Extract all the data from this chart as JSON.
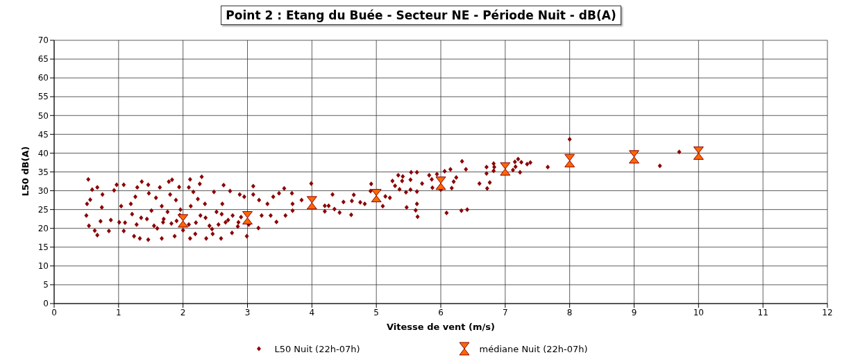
{
  "chart_data": {
    "type": "scatter",
    "title": "Point 2 : Etang du Buée - Secteur NE - Période Nuit - dB(A)",
    "xlabel": "Vitesse de vent (m/s)",
    "ylabel": "L50 dB(A)",
    "xlim": [
      0,
      12
    ],
    "xticks": [
      0,
      1,
      2,
      3,
      4,
      5,
      6,
      7,
      8,
      9,
      10,
      11,
      12
    ],
    "ylim": [
      0,
      70
    ],
    "yticks": [
      0,
      5,
      10,
      15,
      20,
      25,
      30,
      35,
      40,
      45,
      50,
      55,
      60,
      65,
      70
    ],
    "grid": true,
    "legend": "bottom",
    "series": [
      {
        "name": "L50 Nuit (22h-07h)",
        "color": "#8b0000",
        "marker": "diamond",
        "x": [
          0.53,
          0.56,
          0.51,
          0.5,
          0.54,
          0.59,
          0.67,
          0.67,
          0.75,
          0.74,
          0.72,
          0.63,
          0.88,
          0.85,
          0.97,
          1.08,
          0.93,
          1.04,
          1.01,
          1.08,
          1.19,
          1.21,
          1.29,
          1.36,
          1.26,
          1.28,
          1.33,
          1.24,
          1.44,
          1.46,
          1.47,
          1.51,
          1.55,
          1.46,
          1.64,
          1.58,
          1.67,
          1.69,
          1.67,
          1.78,
          1.83,
          1.8,
          1.76,
          1.82,
          1.87,
          1.94,
          1.89,
          1.96,
          2.09,
          2.11,
          2.16,
          2.12,
          2.09,
          2.11,
          2.29,
          2.26,
          2.23,
          2.27,
          2.19,
          2.34,
          2.41,
          2.36,
          2.48,
          2.52,
          2.46,
          2.63,
          2.61,
          2.66,
          2.59,
          2.73,
          2.77,
          2.76,
          2.88,
          2.95,
          2.86,
          3.09,
          3.09,
          3.18,
          3.22,
          2.99,
          3.31,
          3.36,
          3.4,
          3.45,
          3.49,
          3.57,
          3.69,
          3.7,
          3.7,
          3.59,
          3.17,
          3.02,
          1.7,
          1.9,
          2.2,
          2.35,
          2.55,
          2.7,
          2.85,
          1.35,
          1.1,
          1.6,
          2.0,
          2.45,
          2.9,
          1.95,
          2.6,
          3.99,
          4.32,
          3.84,
          4.2,
          4.26,
          4.35,
          4.43,
          4.2,
          4.49,
          4.62,
          4.65,
          4.61,
          4.75,
          4.82,
          4.92,
          4.91,
          5.14,
          5.21,
          5.1,
          5.25,
          5.34,
          5.41,
          5.29,
          5.36,
          5.4,
          5.46,
          5.54,
          5.63,
          5.53,
          5.53,
          5.63,
          5.71,
          5.47,
          5.63,
          5.61,
          5.64,
          5.82,
          5.86,
          5.94,
          6.06,
          6.15,
          6.33,
          6.39,
          6.24,
          6.2,
          5.87,
          6.17,
          6.0,
          6.09,
          6.32,
          6.41,
          6.6,
          6.72,
          6.76,
          6.71,
          6.82,
          6.82,
          6.83,
          6.71,
          7.12,
          7.16,
          7.15,
          7.2,
          7.25,
          7.23,
          7.34,
          7.39,
          7.66,
          8.0,
          9.4,
          9.7
        ],
        "values": [
          33.0,
          27.6,
          26.5,
          23.4,
          20.7,
          30.3,
          30.9,
          18.2,
          29.0,
          25.6,
          21.9,
          19.4,
          22.2,
          19.3,
          31.6,
          31.6,
          30.1,
          25.9,
          21.6,
          19.3,
          26.5,
          23.8,
          30.9,
          32.4,
          28.4,
          21.0,
          17.3,
          17.9,
          22.5,
          31.6,
          29.3,
          24.7,
          20.7,
          17.0,
          30.9,
          28.1,
          25.9,
          21.6,
          17.3,
          32.4,
          32.9,
          29.0,
          24.4,
          21.3,
          17.9,
          31.0,
          27.5,
          25.0,
          30.9,
          33.0,
          29.7,
          25.9,
          21.0,
          17.3,
          33.7,
          31.8,
          27.8,
          23.4,
          18.5,
          26.5,
          20.7,
          17.3,
          29.7,
          24.4,
          18.5,
          31.5,
          26.5,
          21.6,
          17.3,
          29.9,
          23.4,
          18.8,
          29.0,
          28.4,
          21.6,
          31.2,
          29.0,
          27.5,
          23.4,
          17.9,
          26.5,
          23.4,
          28.4,
          21.7,
          29.3,
          30.6,
          29.3,
          26.5,
          24.7,
          23.4,
          20.1,
          21.0,
          22.5,
          22.0,
          21.5,
          22.8,
          21.0,
          22.2,
          20.5,
          22.8,
          21.5,
          20.0,
          19.5,
          19.8,
          23.0,
          23.5,
          23.8,
          31.9,
          29.0,
          27.5,
          26.0,
          26.0,
          25.1,
          24.2,
          24.5,
          27.0,
          27.3,
          28.9,
          23.6,
          26.9,
          26.5,
          31.8,
          29.9,
          28.5,
          28.1,
          25.9,
          32.6,
          34.1,
          33.8,
          31.3,
          30.4,
          32.6,
          29.6,
          34.9,
          34.9,
          32.9,
          30.3,
          29.8,
          31.9,
          25.6,
          26.5,
          24.8,
          23.1,
          34.1,
          33.0,
          34.4,
          35.2,
          35.7,
          37.8,
          35.7,
          33.5,
          32.4,
          30.8,
          30.7,
          30.3,
          24.1,
          24.7,
          25.0,
          31.9,
          30.6,
          32.2,
          34.6,
          37.2,
          35.3,
          36.3,
          36.3,
          35.5,
          36.4,
          37.7,
          38.4,
          37.6,
          34.9,
          37.1,
          37.5,
          36.3,
          43.7,
          36.6,
          40.3
        ]
      },
      {
        "name": "médiane Nuit (22h-07h)",
        "color": "#ff6600",
        "marker": "triangle",
        "x": [
          2,
          3,
          4,
          5,
          6,
          7,
          8,
          9,
          10
        ],
        "values": [
          22.0,
          22.8,
          26.8,
          28.7,
          32.0,
          35.8,
          38.0,
          39.0,
          40.0
        ]
      }
    ]
  }
}
